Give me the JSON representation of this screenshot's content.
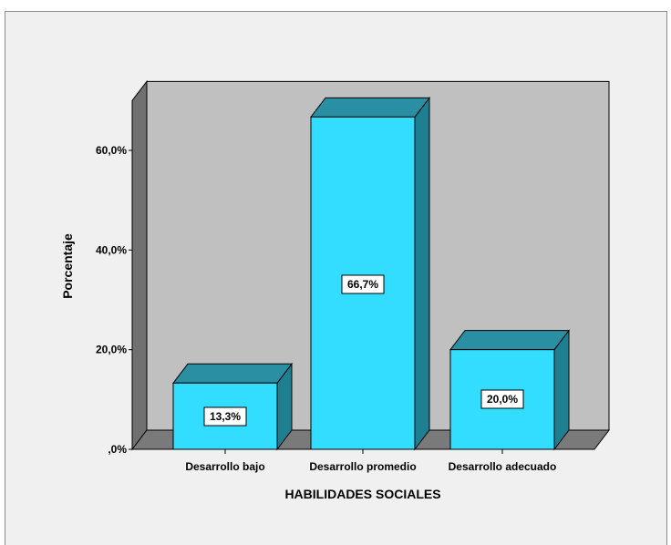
{
  "chart_data": {
    "type": "bar",
    "categories": [
      "Desarrollo bajo",
      "Desarrollo promedio",
      "Desarrollo adecuado"
    ],
    "values": [
      13.3,
      66.7,
      20.0
    ],
    "data_labels": [
      "13,3%",
      "66,7%",
      "20,0%"
    ],
    "xlabel": "HABILIDADES SOCIALES",
    "ylabel": "Porcentaje",
    "ylim": [
      0,
      70
    ],
    "yticks": [
      0,
      20,
      40,
      60
    ],
    "ytick_labels": [
      ",0%",
      "20,0%",
      "40,0%",
      "60,0%"
    ],
    "grid": false,
    "colors": {
      "bar_front": "#33ddff",
      "bar_top": "#2a8fa3",
      "bar_side": "#1f7f92",
      "back_wall": "#c0c0c0",
      "side_wall": "#707070",
      "floor": "#7a7a7a",
      "background": "#f0f0f0"
    }
  }
}
